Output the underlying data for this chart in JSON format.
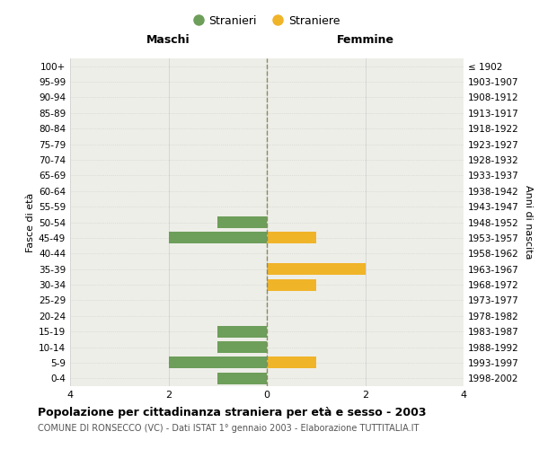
{
  "age_groups": [
    "0-4",
    "5-9",
    "10-14",
    "15-19",
    "20-24",
    "25-29",
    "30-34",
    "35-39",
    "40-44",
    "45-49",
    "50-54",
    "55-59",
    "60-64",
    "65-69",
    "70-74",
    "75-79",
    "80-84",
    "85-89",
    "90-94",
    "95-99",
    "100+"
  ],
  "birth_years": [
    "1998-2002",
    "1993-1997",
    "1988-1992",
    "1983-1987",
    "1978-1982",
    "1973-1977",
    "1968-1972",
    "1963-1967",
    "1958-1962",
    "1953-1957",
    "1948-1952",
    "1943-1947",
    "1938-1942",
    "1933-1937",
    "1928-1932",
    "1923-1927",
    "1918-1922",
    "1913-1917",
    "1908-1912",
    "1903-1907",
    "≤ 1902"
  ],
  "males": [
    1,
    2,
    1,
    1,
    0,
    0,
    0,
    0,
    0,
    2,
    1,
    0,
    0,
    0,
    0,
    0,
    0,
    0,
    0,
    0,
    0
  ],
  "females": [
    0,
    1,
    0,
    0,
    0,
    0,
    1,
    2,
    0,
    1,
    0,
    0,
    0,
    0,
    0,
    0,
    0,
    0,
    0,
    0,
    0
  ],
  "male_color": "#6d9e5a",
  "female_color": "#f0b429",
  "male_label": "Stranieri",
  "female_label": "Straniere",
  "xlim": 4,
  "title": "Popolazione per cittadinanza straniera per età e sesso - 2003",
  "subtitle": "COMUNE DI RONSECCO (VC) - Dati ISTAT 1° gennaio 2003 - Elaborazione TUTTITALIA.IT",
  "xlabel_left": "Maschi",
  "xlabel_right": "Femmine",
  "ylabel_left": "Fasce di età",
  "ylabel_right": "Anni di nascita",
  "bg_color": "#eeeee8",
  "grid_color": "#cccccc",
  "bar_height": 0.75
}
